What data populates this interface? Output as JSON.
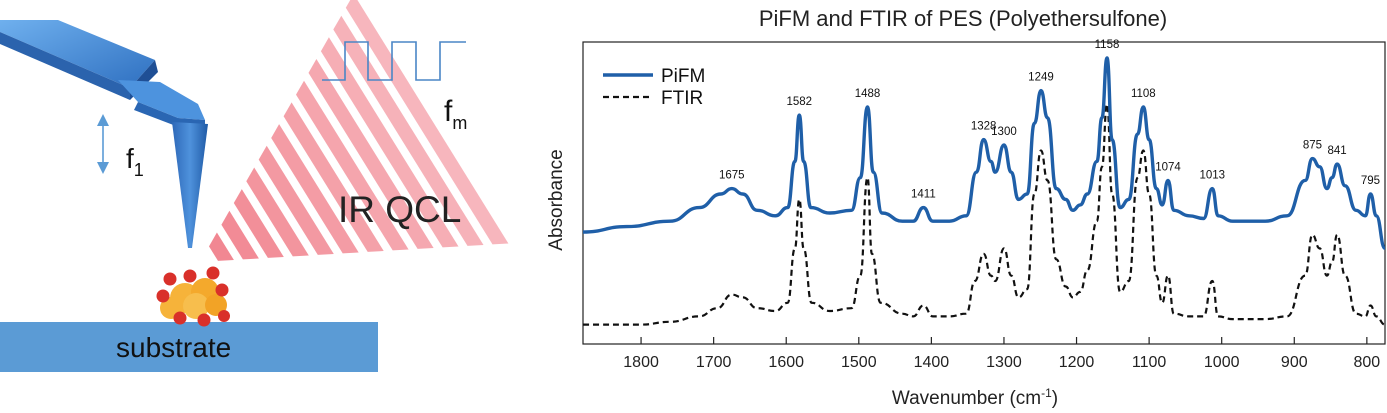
{
  "diagram": {
    "label_f1": "f",
    "label_f1_sub": "1",
    "label_fm": "f",
    "label_fm_sub": "m",
    "label_laser": "IR QCL",
    "label_substrate": "substrate",
    "colors": {
      "cantilever": "#3a7fd0",
      "substrate": "#5b9bd5",
      "beam": "#f07a86",
      "particle_orange": "#f6b33a",
      "particle_red": "#d9302a"
    }
  },
  "chart_data": {
    "type": "line",
    "title": "PiFM and FTIR of PES (Polyethersulfone)",
    "xlabel": "Wavenumber (cm",
    "xlabel_sup": "-1",
    "xlabel_end": ")",
    "ylabel": "Absorbance",
    "xlim": [
      1880,
      775
    ],
    "x_reversed": true,
    "xticks": [
      1800,
      1700,
      1600,
      1500,
      1400,
      1300,
      1200,
      1100,
      1000,
      900,
      800
    ],
    "y_ticks_shown": false,
    "grid": false,
    "legend_position": "top-left",
    "series": [
      {
        "name": "PiFM",
        "color": "#1f5fa8",
        "style": "solid",
        "points": [
          [
            1880,
            0.36
          ],
          [
            1820,
            0.38
          ],
          [
            1760,
            0.4
          ],
          [
            1720,
            0.45
          ],
          [
            1690,
            0.5
          ],
          [
            1675,
            0.52
          ],
          [
            1660,
            0.5
          ],
          [
            1640,
            0.44
          ],
          [
            1615,
            0.42
          ],
          [
            1598,
            0.45
          ],
          [
            1588,
            0.62
          ],
          [
            1582,
            0.79
          ],
          [
            1576,
            0.62
          ],
          [
            1566,
            0.45
          ],
          [
            1540,
            0.43
          ],
          [
            1510,
            0.44
          ],
          [
            1498,
            0.56
          ],
          [
            1488,
            0.82
          ],
          [
            1480,
            0.58
          ],
          [
            1468,
            0.43
          ],
          [
            1440,
            0.4
          ],
          [
            1425,
            0.4
          ],
          [
            1411,
            0.45
          ],
          [
            1398,
            0.4
          ],
          [
            1375,
            0.4
          ],
          [
            1352,
            0.42
          ],
          [
            1338,
            0.58
          ],
          [
            1328,
            0.7
          ],
          [
            1318,
            0.62
          ],
          [
            1312,
            0.58
          ],
          [
            1300,
            0.68
          ],
          [
            1290,
            0.58
          ],
          [
            1280,
            0.48
          ],
          [
            1268,
            0.5
          ],
          [
            1258,
            0.76
          ],
          [
            1249,
            0.88
          ],
          [
            1240,
            0.78
          ],
          [
            1228,
            0.52
          ],
          [
            1215,
            0.48
          ],
          [
            1205,
            0.44
          ],
          [
            1195,
            0.46
          ],
          [
            1185,
            0.5
          ],
          [
            1172,
            0.62
          ],
          [
            1165,
            0.78
          ],
          [
            1158,
            1.0
          ],
          [
            1151,
            0.7
          ],
          [
            1140,
            0.45
          ],
          [
            1128,
            0.48
          ],
          [
            1116,
            0.72
          ],
          [
            1108,
            0.82
          ],
          [
            1100,
            0.7
          ],
          [
            1090,
            0.52
          ],
          [
            1082,
            0.46
          ],
          [
            1074,
            0.55
          ],
          [
            1066,
            0.44
          ],
          [
            1045,
            0.42
          ],
          [
            1025,
            0.41
          ],
          [
            1013,
            0.52
          ],
          [
            1005,
            0.42
          ],
          [
            985,
            0.4
          ],
          [
            940,
            0.4
          ],
          [
            910,
            0.42
          ],
          [
            885,
            0.55
          ],
          [
            875,
            0.63
          ],
          [
            865,
            0.6
          ],
          [
            855,
            0.52
          ],
          [
            848,
            0.56
          ],
          [
            841,
            0.61
          ],
          [
            830,
            0.53
          ],
          [
            815,
            0.44
          ],
          [
            802,
            0.42
          ],
          [
            795,
            0.5
          ],
          [
            787,
            0.42
          ],
          [
            775,
            0.3
          ]
        ]
      },
      {
        "name": "FTIR",
        "color": "#111111",
        "style": "dashed",
        "points": [
          [
            1880,
            0.02
          ],
          [
            1800,
            0.02
          ],
          [
            1760,
            0.03
          ],
          [
            1720,
            0.05
          ],
          [
            1695,
            0.08
          ],
          [
            1675,
            0.13
          ],
          [
            1660,
            0.12
          ],
          [
            1640,
            0.08
          ],
          [
            1615,
            0.07
          ],
          [
            1598,
            0.1
          ],
          [
            1588,
            0.3
          ],
          [
            1582,
            0.48
          ],
          [
            1576,
            0.3
          ],
          [
            1565,
            0.1
          ],
          [
            1540,
            0.07
          ],
          [
            1510,
            0.08
          ],
          [
            1498,
            0.2
          ],
          [
            1488,
            0.56
          ],
          [
            1482,
            0.28
          ],
          [
            1470,
            0.1
          ],
          [
            1440,
            0.06
          ],
          [
            1425,
            0.05
          ],
          [
            1411,
            0.09
          ],
          [
            1398,
            0.05
          ],
          [
            1375,
            0.05
          ],
          [
            1352,
            0.06
          ],
          [
            1340,
            0.18
          ],
          [
            1328,
            0.28
          ],
          [
            1318,
            0.2
          ],
          [
            1312,
            0.18
          ],
          [
            1300,
            0.3
          ],
          [
            1290,
            0.2
          ],
          [
            1280,
            0.12
          ],
          [
            1268,
            0.15
          ],
          [
            1258,
            0.5
          ],
          [
            1249,
            0.66
          ],
          [
            1240,
            0.55
          ],
          [
            1228,
            0.26
          ],
          [
            1215,
            0.16
          ],
          [
            1205,
            0.12
          ],
          [
            1195,
            0.14
          ],
          [
            1185,
            0.22
          ],
          [
            1172,
            0.4
          ],
          [
            1165,
            0.6
          ],
          [
            1158,
            0.83
          ],
          [
            1151,
            0.5
          ],
          [
            1140,
            0.14
          ],
          [
            1128,
            0.18
          ],
          [
            1116,
            0.56
          ],
          [
            1108,
            0.66
          ],
          [
            1100,
            0.5
          ],
          [
            1090,
            0.2
          ],
          [
            1082,
            0.1
          ],
          [
            1074,
            0.2
          ],
          [
            1066,
            0.06
          ],
          [
            1045,
            0.05
          ],
          [
            1025,
            0.05
          ],
          [
            1013,
            0.18
          ],
          [
            1005,
            0.05
          ],
          [
            985,
            0.04
          ],
          [
            940,
            0.04
          ],
          [
            910,
            0.05
          ],
          [
            885,
            0.2
          ],
          [
            875,
            0.35
          ],
          [
            865,
            0.3
          ],
          [
            855,
            0.2
          ],
          [
            848,
            0.25
          ],
          [
            841,
            0.35
          ],
          [
            830,
            0.2
          ],
          [
            815,
            0.06
          ],
          [
            802,
            0.05
          ],
          [
            795,
            0.09
          ],
          [
            787,
            0.05
          ],
          [
            775,
            0.02
          ]
        ]
      }
    ],
    "peak_labels": [
      {
        "x": 1675,
        "y": 0.52,
        "text": "1675"
      },
      {
        "x": 1582,
        "y": 0.79,
        "text": "1582"
      },
      {
        "x": 1488,
        "y": 0.82,
        "text": "1488"
      },
      {
        "x": 1411,
        "y": 0.45,
        "text": "1411"
      },
      {
        "x": 1328,
        "y": 0.7,
        "text": "1328"
      },
      {
        "x": 1300,
        "y": 0.68,
        "text": "1300"
      },
      {
        "x": 1249,
        "y": 0.88,
        "text": "1249"
      },
      {
        "x": 1158,
        "y": 1.0,
        "text": "1158"
      },
      {
        "x": 1108,
        "y": 0.82,
        "text": "1108"
      },
      {
        "x": 1074,
        "y": 0.55,
        "text": "1074"
      },
      {
        "x": 1013,
        "y": 0.52,
        "text": "1013"
      },
      {
        "x": 875,
        "y": 0.63,
        "text": "875"
      },
      {
        "x": 841,
        "y": 0.61,
        "text": "841"
      },
      {
        "x": 795,
        "y": 0.5,
        "text": "795"
      }
    ]
  }
}
